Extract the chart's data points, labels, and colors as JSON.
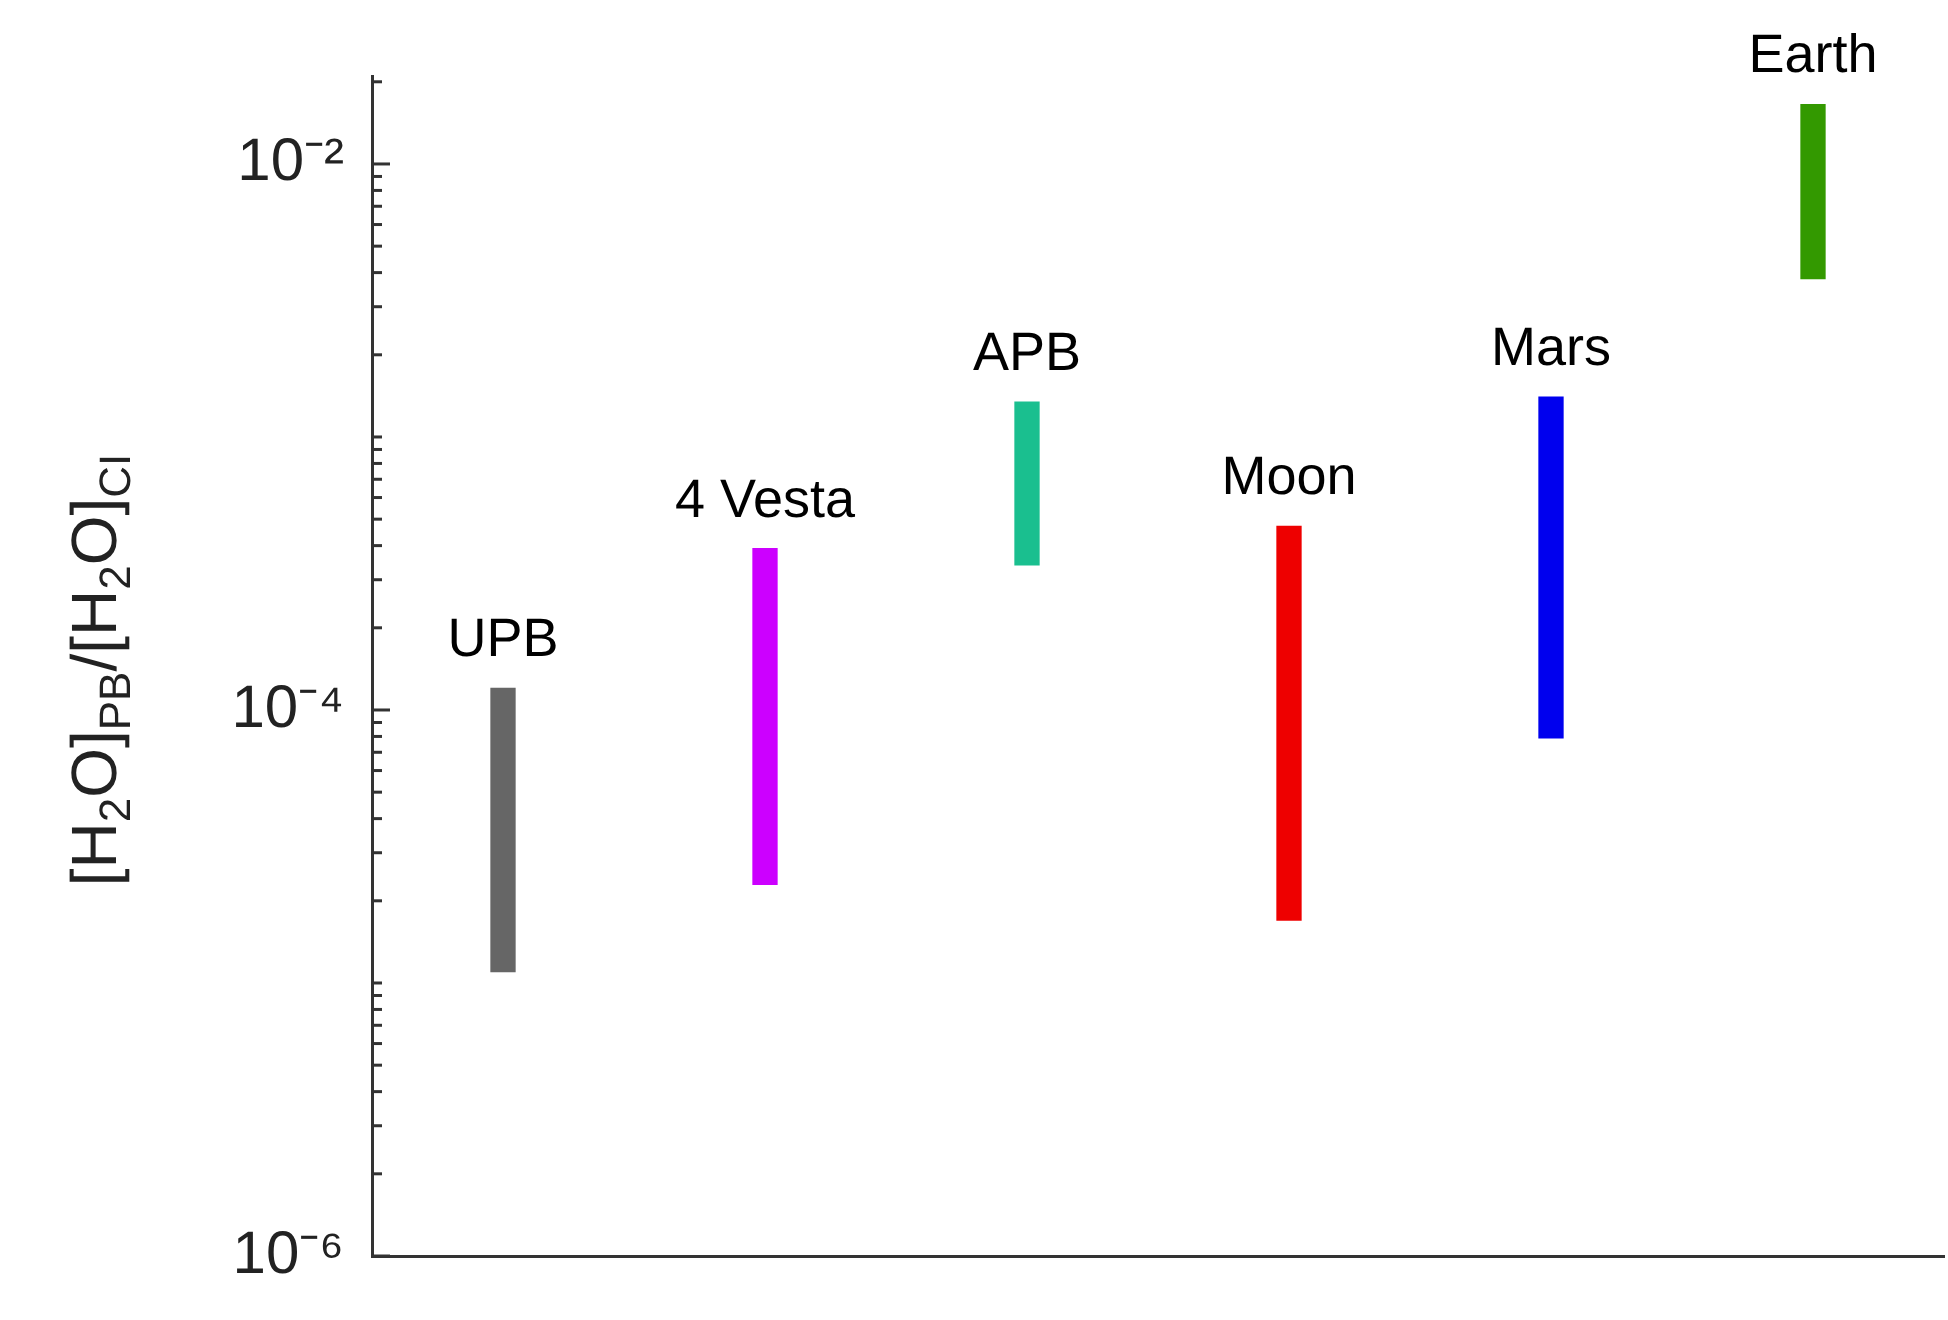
{
  "chart_data": {
    "type": "bar",
    "ylabel": "[H$_{2}$O]$_{PB}$/[H$_{2}$O]$_{CI}$",
    "categories": [
      "UPB",
      "4 Vesta",
      "APB",
      "Moon",
      "Mars",
      "Earth"
    ],
    "base": [
      1.1e-05,
      2.3e-05,
      0.00034,
      1.7e-05,
      7.9e-05,
      0.0038
    ],
    "values": [
      0.000109,
      0.000367,
      0.001,
      0.000453,
      0.001321,
      0.0127
    ],
    "colors": [
      "#666666",
      "#cc00ff",
      "#1abf8f",
      "#ee0000",
      "#0000ee",
      "#339900"
    ],
    "log": "y",
    "ylim": [
      1e-06,
      0.021
    ],
    "yticks": [
      {
        "value": 1e-06,
        "label": "10⁻⁶"
      },
      {
        "value": 2e-06,
        "label": null
      },
      {
        "value": 3e-06,
        "label": null
      },
      {
        "value": 4e-06,
        "label": null
      },
      {
        "value": 5e-06,
        "label": null
      },
      {
        "value": 6e-06,
        "label": null
      },
      {
        "value": 7e-06,
        "label": null
      },
      {
        "value": 8e-06,
        "label": null
      },
      {
        "value": 9e-06,
        "label": null
      },
      {
        "value": 1e-05,
        "label": null
      },
      {
        "value": 2e-05,
        "label": null
      },
      {
        "value": 3e-05,
        "label": null
      },
      {
        "value": 4e-05,
        "label": null
      },
      {
        "value": 5e-05,
        "label": null
      },
      {
        "value": 6e-05,
        "label": null
      },
      {
        "value": 7e-05,
        "label": null
      },
      {
        "value": 8e-05,
        "label": null
      },
      {
        "value": 9e-05,
        "label": null
      },
      {
        "value": 0.0001,
        "label": "10⁻⁴"
      },
      {
        "value": 0.0002,
        "label": null
      },
      {
        "value": 0.0003,
        "label": null
      },
      {
        "value": 0.0004,
        "label": null
      },
      {
        "value": 0.0005,
        "label": null
      },
      {
        "value": 0.0006,
        "label": null
      },
      {
        "value": 0.0007,
        "label": null
      },
      {
        "value": 0.0008,
        "label": null
      },
      {
        "value": 0.0009,
        "label": null
      },
      {
        "value": 0.001,
        "label": null
      },
      {
        "value": 0.002,
        "label": null
      },
      {
        "value": 0.003,
        "label": null
      },
      {
        "value": 0.004,
        "label": null
      },
      {
        "value": 0.005,
        "label": null
      },
      {
        "value": 0.006,
        "label": null
      },
      {
        "value": 0.007,
        "label": null
      },
      {
        "value": 0.008,
        "label": null
      },
      {
        "value": 0.009,
        "label": null
      },
      {
        "value": 0.01,
        "label": "10⁻²"
      },
      {
        "value": 0.02,
        "label": null
      }
    ],
    "tick_labels": "y",
    "grid": false,
    "legend": false
  }
}
